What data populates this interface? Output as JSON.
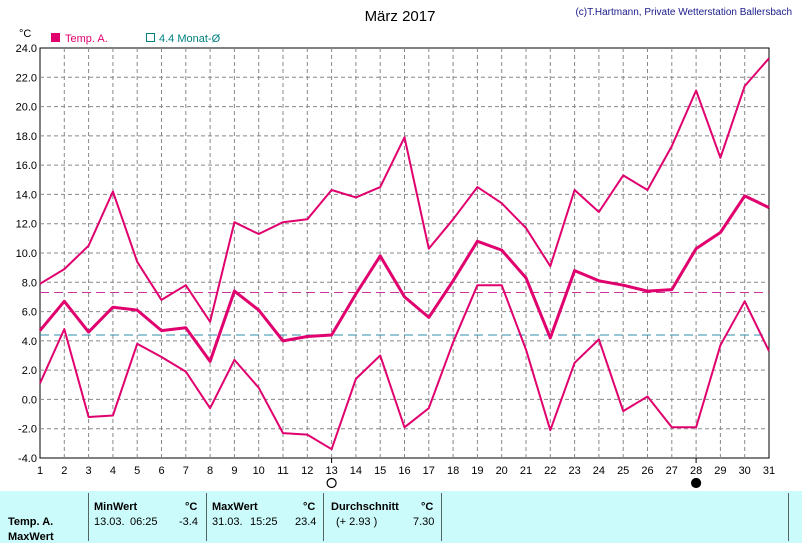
{
  "chart_data": {
    "type": "line",
    "title": "März 2017",
    "credit": "(c)T.Hartmann, Private Wetterstation Ballersbach",
    "yunit": "°C",
    "ylim": [
      -4.0,
      24.0
    ],
    "yticks": [
      "-4.0",
      "-2.0",
      "0.0",
      "2.0",
      "4.0",
      "6.0",
      "8.0",
      "10.0",
      "12.0",
      "14.0",
      "16.0",
      "18.0",
      "20.0",
      "22.0",
      "24.0"
    ],
    "x": [
      1,
      2,
      3,
      4,
      5,
      6,
      7,
      8,
      9,
      10,
      11,
      12,
      13,
      14,
      15,
      16,
      17,
      18,
      19,
      20,
      21,
      22,
      23,
      24,
      25,
      26,
      27,
      28,
      29,
      30,
      31
    ],
    "legend": [
      {
        "label": "Temp. A.",
        "color": "#e0006e",
        "filled": true
      },
      {
        "label": "4.4 Monat-Ø",
        "color": "#008080",
        "filled": false
      }
    ],
    "series": [
      {
        "name": "max",
        "values": [
          7.9,
          8.9,
          10.5,
          14.2,
          9.4,
          6.8,
          7.8,
          5.3,
          12.1,
          11.3,
          12.1,
          12.3,
          14.3,
          13.8,
          14.5,
          17.9,
          10.3,
          12.3,
          14.5,
          13.4,
          11.7,
          9.1,
          14.3,
          12.8,
          15.3,
          14.3,
          17.3,
          21.1,
          16.5,
          21.4,
          23.3
        ],
        "width": 2
      },
      {
        "name": "mean",
        "values": [
          4.7,
          6.7,
          4.6,
          6.3,
          6.1,
          4.7,
          4.9,
          2.6,
          7.4,
          6.1,
          4.0,
          4.3,
          4.4,
          7.2,
          9.8,
          7.0,
          5.6,
          8.1,
          10.8,
          10.2,
          8.3,
          4.2,
          8.8,
          8.1,
          7.8,
          7.4,
          7.5,
          10.3,
          11.4,
          13.9,
          13.1
        ],
        "width": 3
      },
      {
        "name": "min",
        "values": [
          1.1,
          4.8,
          -1.2,
          -1.1,
          3.8,
          2.9,
          1.9,
          -0.6,
          2.7,
          0.8,
          -2.3,
          -2.4,
          -3.4,
          1.4,
          3.0,
          -1.9,
          -0.6,
          3.9,
          7.8,
          7.8,
          3.4,
          -2.1,
          2.5,
          4.1,
          -0.8,
          0.2,
          -1.9,
          -1.9,
          3.7,
          6.7,
          3.3
        ],
        "width": 2
      }
    ],
    "reference_lines": [
      {
        "value": 7.3,
        "color": "#cc3399"
      },
      {
        "value": 4.4,
        "color": "#2f8fa8"
      }
    ],
    "markers": [
      {
        "x": 13,
        "symbol": "open-circle"
      },
      {
        "x": 28,
        "symbol": "filled-circle"
      }
    ],
    "line_color": "#e0006e",
    "grid": true
  },
  "stats": {
    "row_labels": [
      "Temp. A.",
      "MaxWert"
    ],
    "min": {
      "header": "MinWert",
      "unit": "°C",
      "date": "13.03.",
      "time": "06:25",
      "value": "-3.4"
    },
    "max": {
      "header": "MaxWert",
      "unit": "°C",
      "date": "31.03.",
      "time": "15:25",
      "value": "23.4"
    },
    "avg": {
      "header": "Durchschnitt",
      "unit": "°C",
      "delta": "(+ 2.93 )",
      "value": "7.30"
    }
  }
}
